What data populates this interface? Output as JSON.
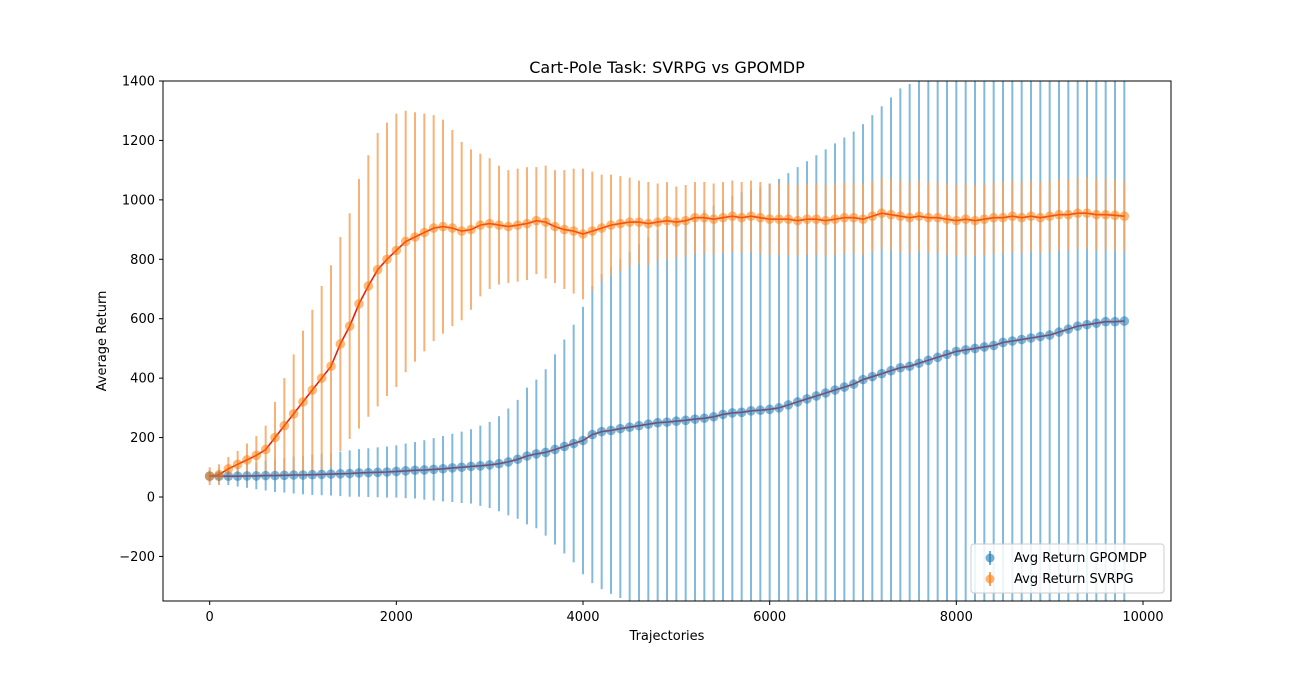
{
  "chart_data": {
    "type": "scatter",
    "title": "Cart-Pole Task: SVRPG vs GPOMDP",
    "xlabel": "Trajectories",
    "ylabel": "Average Return",
    "xlim": [
      -500,
      10300
    ],
    "ylim": [
      -350,
      1400
    ],
    "xticks": [
      0,
      2000,
      4000,
      6000,
      8000,
      10000
    ],
    "xtick_labels": [
      "0",
      "2000",
      "4000",
      "6000",
      "8000",
      "10000"
    ],
    "yticks": [
      -200,
      0,
      200,
      400,
      600,
      800,
      1000,
      1200,
      1400
    ],
    "ytick_labels": [
      "−200",
      "0",
      "200",
      "400",
      "600",
      "800",
      "1000",
      "1200",
      "1400"
    ],
    "grid": false,
    "legend_position": "lower-right",
    "x": [
      0,
      100,
      200,
      300,
      400,
      500,
      600,
      700,
      800,
      900,
      1000,
      1100,
      1200,
      1300,
      1400,
      1500,
      1600,
      1700,
      1800,
      1900,
      2000,
      2100,
      2200,
      2300,
      2400,
      2500,
      2600,
      2700,
      2800,
      2900,
      3000,
      3100,
      3200,
      3300,
      3400,
      3500,
      3600,
      3700,
      3800,
      3900,
      4000,
      4100,
      4200,
      4300,
      4400,
      4500,
      4600,
      4700,
      4800,
      4900,
      5000,
      5100,
      5200,
      5300,
      5400,
      5500,
      5600,
      5700,
      5800,
      5900,
      6000,
      6100,
      6200,
      6300,
      6400,
      6500,
      6600,
      6700,
      6800,
      6900,
      7000,
      7100,
      7200,
      7300,
      7400,
      7500,
      7600,
      7700,
      7800,
      7900,
      8000,
      8100,
      8200,
      8300,
      8400,
      8500,
      8600,
      8700,
      8800,
      8900,
      9000,
      9100,
      9200,
      9300,
      9400,
      9500,
      9600,
      9700,
      9800
    ],
    "series": [
      {
        "name": "Avg Return GPOMDP",
        "color": "#1f77b4",
        "errbar_color": "#6baed6",
        "errbar_dark_color": "#253a52",
        "line_color": "#d62728",
        "values": [
          70,
          70,
          70,
          70,
          71,
          71,
          72,
          72,
          73,
          74,
          74,
          75,
          76,
          77,
          78,
          79,
          81,
          82,
          83,
          84,
          86,
          88,
          90,
          91,
          93,
          95,
          98,
          100,
          103,
          105,
          108,
          112,
          118,
          127,
          138,
          145,
          150,
          160,
          170,
          180,
          190,
          210,
          220,
          224,
          230,
          235,
          240,
          245,
          250,
          252,
          255,
          258,
          262,
          265,
          270,
          278,
          283,
          285,
          290,
          292,
          295,
          300,
          310,
          320,
          330,
          340,
          350,
          360,
          370,
          380,
          395,
          405,
          415,
          425,
          435,
          440,
          450,
          460,
          470,
          480,
          490,
          495,
          500,
          505,
          510,
          520,
          525,
          530,
          535,
          540,
          545,
          555,
          565,
          575,
          580,
          585,
          590,
          590,
          592
        ],
        "errors": [
          20,
          25,
          30,
          35,
          40,
          45,
          50,
          55,
          58,
          62,
          65,
          68,
          70,
          72,
          75,
          78,
          80,
          82,
          84,
          86,
          88,
          92,
          95,
          100,
          105,
          110,
          115,
          120,
          125,
          135,
          145,
          160,
          180,
          200,
          230,
          250,
          280,
          320,
          360,
          400,
          450,
          500,
          530,
          550,
          570,
          590,
          610,
          630,
          650,
          660,
          670,
          680,
          690,
          700,
          710,
          720,
          730,
          740,
          745,
          750,
          760,
          770,
          780,
          790,
          800,
          810,
          820,
          830,
          840,
          850,
          860,
          880,
          900,
          920,
          940,
          950,
          960,
          970,
          980,
          990,
          1000,
          1020,
          1030,
          1040,
          1050,
          1060,
          1070,
          1080,
          1090,
          1100,
          1110,
          1120,
          1130,
          1140,
          1150,
          1160,
          1170,
          1180,
          1190
        ]
      },
      {
        "name": "Avg Return SVRPG",
        "color": "#ff7f0e",
        "errbar_color": "#f4a460",
        "errbar_dark_color": "#7a3a12",
        "line_color": "#e8200a",
        "values": [
          70,
          75,
          95,
          110,
          125,
          140,
          160,
          200,
          240,
          280,
          320,
          360,
          400,
          440,
          515,
          575,
          650,
          710,
          765,
          800,
          830,
          860,
          875,
          890,
          905,
          910,
          905,
          895,
          900,
          915,
          920,
          915,
          910,
          915,
          920,
          930,
          925,
          910,
          900,
          895,
          885,
          895,
          905,
          915,
          920,
          925,
          925,
          920,
          925,
          930,
          925,
          930,
          940,
          940,
          935,
          940,
          945,
          940,
          945,
          940,
          935,
          935,
          935,
          930,
          935,
          935,
          930,
          935,
          940,
          940,
          935,
          945,
          955,
          950,
          945,
          940,
          945,
          940,
          940,
          935,
          930,
          935,
          930,
          935,
          940,
          940,
          945,
          940,
          945,
          940,
          945,
          950,
          950,
          955,
          955,
          950,
          950,
          948,
          945
        ],
        "errors": [
          30,
          35,
          40,
          45,
          55,
          65,
          80,
          120,
          160,
          200,
          240,
          270,
          310,
          340,
          360,
          380,
          420,
          440,
          460,
          460,
          460,
          440,
          420,
          400,
          380,
          360,
          330,
          300,
          270,
          240,
          220,
          200,
          190,
          190,
          190,
          180,
          190,
          190,
          200,
          210,
          220,
          200,
          180,
          170,
          160,
          150,
          140,
          140,
          130,
          130,
          120,
          120,
          120,
          120,
          120,
          120,
          120,
          120,
          120,
          120,
          120,
          120,
          120,
          120,
          120,
          120,
          120,
          120,
          120,
          120,
          120,
          120,
          120,
          120,
          120,
          120,
          120,
          120,
          120,
          120,
          120,
          120,
          120,
          120,
          120,
          120,
          120,
          120,
          120,
          120,
          120,
          120,
          120,
          120,
          120,
          120,
          120,
          120,
          120
        ]
      }
    ]
  }
}
